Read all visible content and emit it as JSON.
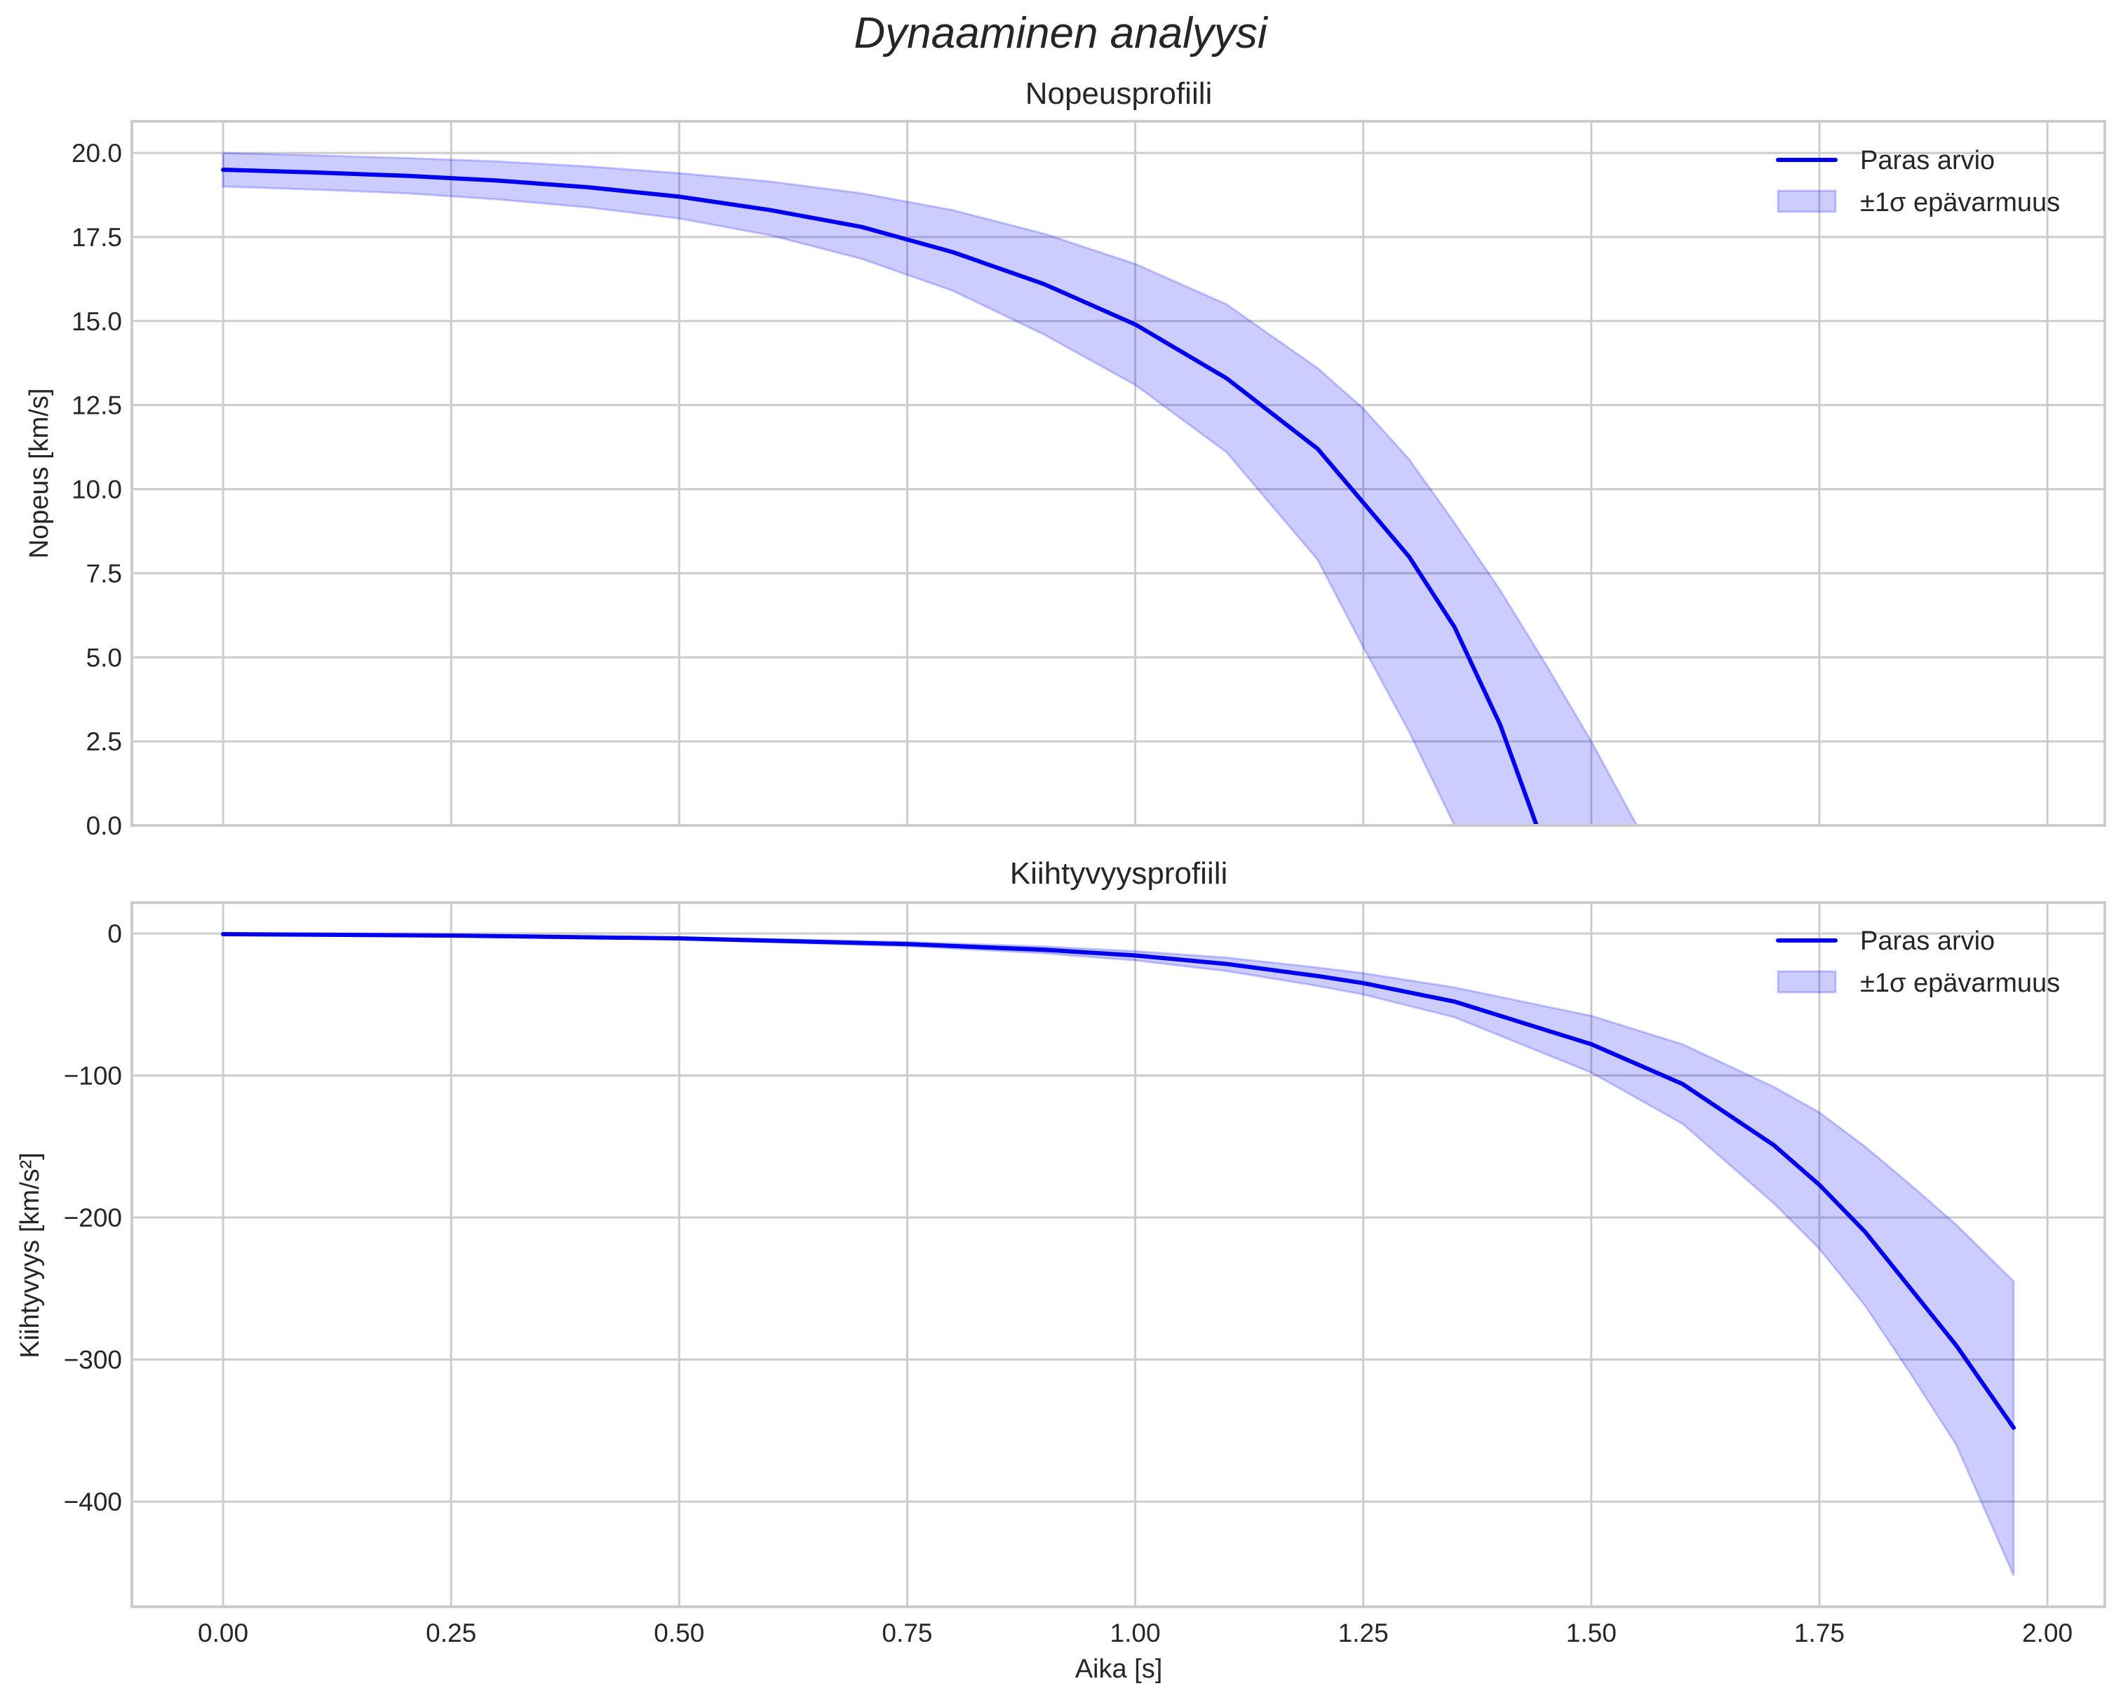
{
  "figure": {
    "title": "Dynaaminen analyysi"
  },
  "colors": {
    "line": "#0000ee",
    "band_fill": "#0000ff",
    "band_alpha": 0.2,
    "grid": "#cccccc",
    "text": "#262626"
  },
  "legend": {
    "line_label": "Paras arvio",
    "band_label": "±1σ epävarmuus"
  },
  "chart_data": [
    {
      "type": "line",
      "title": "Nopeusprofiili",
      "xlabel": "",
      "ylabel": "Nopeus [km/s]",
      "xlim": [
        -0.1,
        2.063
      ],
      "ylim": [
        0,
        20.94
      ],
      "grid": true,
      "legend_position": "upper right",
      "xticks": [
        "0.00",
        "0.25",
        "0.50",
        "0.75",
        "1.00",
        "1.25",
        "1.50",
        "1.75",
        "2.00"
      ],
      "xtick_values": [
        0,
        0.25,
        0.5,
        0.75,
        1.0,
        1.25,
        1.5,
        1.75,
        2.0
      ],
      "show_xtick_labels": false,
      "yticks": [
        "0.0",
        "2.5",
        "5.0",
        "7.5",
        "10.0",
        "12.5",
        "15.0",
        "17.5",
        "20.0"
      ],
      "ytick_values": [
        0,
        2.5,
        5,
        7.5,
        10,
        12.5,
        15,
        17.5,
        20
      ],
      "series": [
        {
          "name": "Paras arvio",
          "x": [
            0,
            0.1,
            0.2,
            0.3,
            0.4,
            0.5,
            0.6,
            0.7,
            0.8,
            0.9,
            1.0,
            1.1,
            1.2,
            1.3,
            1.35,
            1.4,
            1.44
          ],
          "y": [
            19.5,
            19.42,
            19.32,
            19.18,
            18.98,
            18.7,
            18.3,
            17.8,
            17.05,
            16.1,
            14.9,
            13.3,
            11.2,
            8.0,
            5.9,
            3.0,
            0.0
          ]
        }
      ],
      "band": {
        "name": "±1σ epävarmuus",
        "x": [
          0,
          0.1,
          0.2,
          0.3,
          0.4,
          0.5,
          0.6,
          0.7,
          0.8,
          0.9,
          1.0,
          1.1,
          1.2,
          1.25,
          1.3,
          1.35,
          1.4,
          1.45,
          1.5,
          1.55
        ],
        "upper": [
          20.0,
          19.93,
          19.85,
          19.75,
          19.6,
          19.4,
          19.15,
          18.8,
          18.3,
          17.6,
          16.7,
          15.5,
          13.6,
          12.4,
          10.9,
          9.0,
          7.0,
          4.8,
          2.5,
          0.0
        ],
        "lower": [
          19.0,
          18.91,
          18.8,
          18.62,
          18.38,
          18.05,
          17.55,
          16.85,
          15.9,
          14.6,
          13.1,
          11.1,
          7.9,
          5.3,
          2.8,
          0.0,
          null,
          null,
          null,
          null
        ]
      }
    },
    {
      "type": "line",
      "title": "Kiihtyvyysprofiili",
      "xlabel": "Aika [s]",
      "ylabel": "Kiihtyvyys [km/s²]",
      "xlim": [
        -0.1,
        2.063
      ],
      "ylim": [
        -474,
        21.7
      ],
      "grid": true,
      "legend_position": "upper right",
      "xticks": [
        "0.00",
        "0.25",
        "0.50",
        "0.75",
        "1.00",
        "1.25",
        "1.50",
        "1.75",
        "2.00"
      ],
      "xtick_values": [
        0,
        0.25,
        0.5,
        0.75,
        1.0,
        1.25,
        1.5,
        1.75,
        2.0
      ],
      "show_xtick_labels": true,
      "yticks": [
        "−400",
        "−300",
        "−200",
        "−100",
        "0"
      ],
      "ytick_values": [
        -400,
        -300,
        -200,
        -100,
        0
      ],
      "series": [
        {
          "name": "Paras arvio",
          "x": [
            0,
            0.25,
            0.5,
            0.75,
            0.9,
            1.0,
            1.1,
            1.2,
            1.25,
            1.35,
            1.5,
            1.6,
            1.7,
            1.75,
            1.8,
            1.85,
            1.9,
            1.963
          ],
          "y": [
            -0.5,
            -1.5,
            -3.5,
            -7.5,
            -11.5,
            -15.5,
            -21.5,
            -30,
            -35,
            -48,
            -78,
            -106,
            -149,
            -177,
            -210,
            -250,
            -290,
            -348
          ]
        }
      ],
      "band": {
        "name": "±1σ epävarmuus",
        "x": [
          0,
          0.25,
          0.5,
          0.75,
          0.9,
          1.0,
          1.1,
          1.2,
          1.25,
          1.35,
          1.5,
          1.6,
          1.7,
          1.75,
          1.8,
          1.85,
          1.9,
          1.963
        ],
        "upper": [
          -0.4,
          -1.2,
          -2.8,
          -6,
          -9.2,
          -12.5,
          -17,
          -24,
          -28,
          -38,
          -58,
          -78,
          -108,
          -126,
          -150,
          -177,
          -205,
          -245
        ],
        "lower": [
          -0.6,
          -1.8,
          -4.2,
          -9,
          -14,
          -19,
          -26.5,
          -37,
          -43,
          -59,
          -98,
          -134,
          -190,
          -222,
          -262,
          -310,
          -360,
          -452
        ]
      }
    }
  ]
}
